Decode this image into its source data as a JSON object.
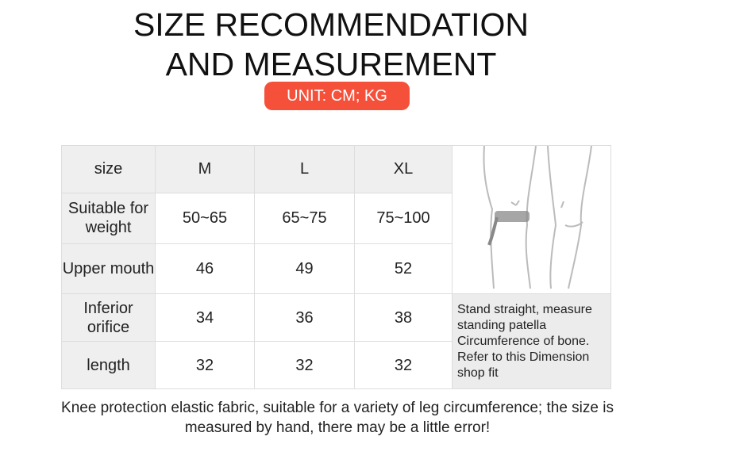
{
  "title_lines": [
    "SIZE RECOMMENDATION",
    "AND MEASUREMENT"
  ],
  "unit_badge": "UNIT: CM; KG",
  "badge_color": "#f5503a",
  "table": {
    "headers": [
      "size",
      "M",
      "L",
      "XL"
    ],
    "rows": [
      {
        "label": "Suitable for weight",
        "values": [
          "50~65",
          "65~75",
          "75~100"
        ]
      },
      {
        "label": "Upper mouth",
        "values": [
          "46",
          "49",
          "52"
        ]
      },
      {
        "label": "Inferior orifice",
        "values": [
          "34",
          "36",
          "38"
        ]
      },
      {
        "label": "length",
        "values": [
          "32",
          "32",
          "32"
        ]
      }
    ],
    "illustration": "knee-measuring-tape-illustration",
    "note": "Stand straight, measure standing patella Circumference of bone. Refer to this Dimension shop fit"
  },
  "footer": "Knee protection elastic fabric, suitable for a variety of leg circumference; the size is measured by hand, there may be a little error!"
}
